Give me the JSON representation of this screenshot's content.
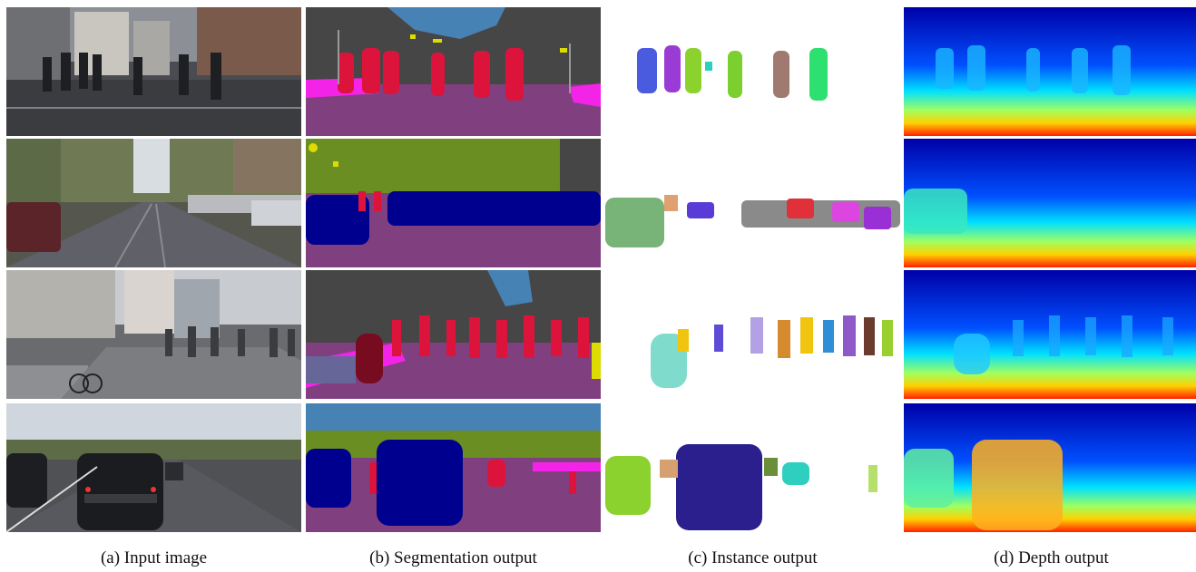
{
  "captions": {
    "a": "(a) Input image",
    "b": "(b) Segmentation output",
    "c": "(c) Instance output",
    "d": "(d) Depth output"
  },
  "colors": {
    "road": "#804080",
    "sidewalk": "#f423e8",
    "building": "#464646",
    "vegetation": "#6b8e23",
    "sky": "#4682b4",
    "person": "#dc143c",
    "car": "#00008e",
    "pole": "#999999",
    "traffic_sign": "#dcdc00",
    "depth_far": "#00008f",
    "depth_mid": "#00ffff",
    "depth_near": "#ff0000"
  }
}
